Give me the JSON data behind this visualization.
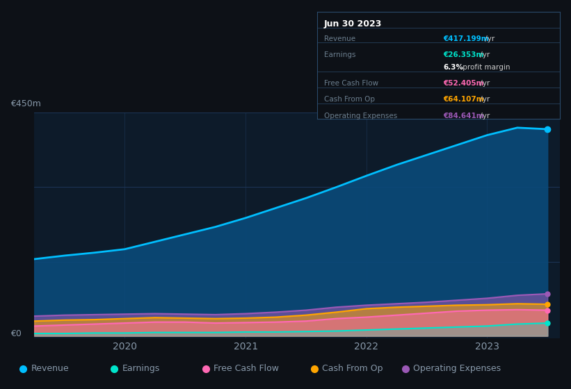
{
  "bg_color": "#0d1117",
  "plot_bg_color": "#0d1b2a",
  "grid_color": "#1e3a5f",
  "text_color": "#8899aa",
  "title_color": "#ffffff",
  "y_label_max": "€450m",
  "y_label_zero": "€0",
  "years": [
    2019.25,
    2019.5,
    2019.75,
    2020.0,
    2020.25,
    2020.5,
    2020.75,
    2021.0,
    2021.25,
    2021.5,
    2021.75,
    2022.0,
    2022.25,
    2022.5,
    2022.75,
    2023.0,
    2023.25,
    2023.5
  ],
  "revenue": [
    155,
    162,
    168,
    175,
    190,
    205,
    220,
    238,
    258,
    278,
    300,
    323,
    345,
    365,
    385,
    405,
    420,
    417
  ],
  "earnings": [
    5,
    5,
    6,
    6,
    7,
    7,
    7,
    8,
    8,
    9,
    10,
    12,
    14,
    16,
    18,
    20,
    24,
    26
  ],
  "free_cash_flow": [
    20,
    22,
    24,
    26,
    28,
    28,
    26,
    27,
    28,
    30,
    35,
    38,
    42,
    46,
    50,
    52,
    53,
    52
  ],
  "cash_from_op": [
    30,
    32,
    33,
    35,
    37,
    36,
    35,
    36,
    38,
    42,
    48,
    55,
    58,
    60,
    62,
    63,
    65,
    64
  ],
  "op_expenses": [
    40,
    42,
    43,
    44,
    45,
    44,
    43,
    45,
    48,
    52,
    58,
    62,
    65,
    68,
    72,
    76,
    82,
    85
  ],
  "revenue_color": "#00bfff",
  "earnings_color": "#00e5cc",
  "fcf_color": "#ff69b4",
  "cfo_color": "#ffa500",
  "opex_color": "#9b59b6",
  "revenue_fill": "#0a4a7a",
  "tooltip_bg": "#0d1117",
  "tooltip_border": "#2a4a6a",
  "tooltip_title": "Jun 30 2023",
  "tooltip_rows": [
    {
      "label": "Revenue",
      "value": "€417.199m /yr",
      "color": "#00bfff"
    },
    {
      "label": "Earnings",
      "value": "€26.353m /yr",
      "color": "#00e5cc"
    },
    {
      "label": "",
      "value": "6.3% profit margin",
      "color": "#ffffff"
    },
    {
      "label": "Free Cash Flow",
      "value": "€52.405m /yr",
      "color": "#ff69b4"
    },
    {
      "label": "Cash From Op",
      "value": "€64.107m /yr",
      "color": "#ffa500"
    },
    {
      "label": "Operating Expenses",
      "value": "€84.641m /yr",
      "color": "#9b59b6"
    }
  ],
  "legend_entries": [
    {
      "label": "Revenue",
      "color": "#00bfff"
    },
    {
      "label": "Earnings",
      "color": "#00e5cc"
    },
    {
      "label": "Free Cash Flow",
      "color": "#ff69b4"
    },
    {
      "label": "Cash From Op",
      "color": "#ffa500"
    },
    {
      "label": "Operating Expenses",
      "color": "#9b59b6"
    }
  ]
}
